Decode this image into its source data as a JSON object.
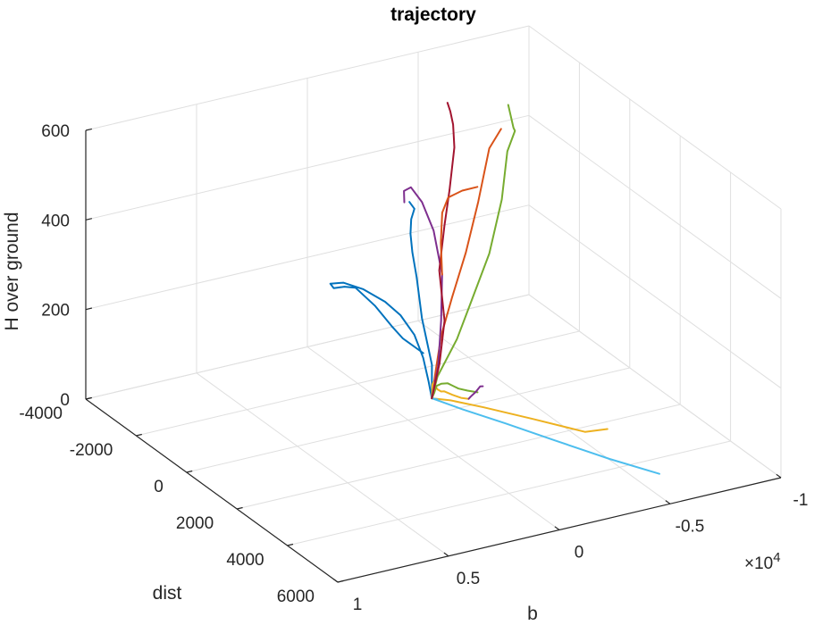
{
  "chart_data": {
    "type": "line",
    "title": "trajectory",
    "xlabel": "b",
    "ylabel": "dist",
    "zlabel": "H over ground",
    "x_exponent_label": "×10",
    "x_exponent_power": "4",
    "x_ticks": [
      "-1",
      "-0.5",
      "0",
      "0.5",
      "1"
    ],
    "y_ticks": [
      "-4000",
      "-2000",
      "0",
      "2000",
      "4000",
      "6000"
    ],
    "z_ticks": [
      "0",
      "200",
      "400",
      "600"
    ],
    "xlim": [
      -10000,
      10000
    ],
    "ylim": [
      -4000,
      6000
    ],
    "zlim": [
      0,
      600
    ],
    "grid": true,
    "view": "3d",
    "colors": {
      "axis": "#262626",
      "grid": "#dfdfdf",
      "series": [
        "#0072bd",
        "#d95319",
        "#edb120",
        "#7e2f8e",
        "#77ac30",
        "#4dbeee",
        "#a2142f"
      ]
    },
    "series": [
      {
        "color": "#0072bd",
        "points": [
          [
            -570,
            440,
            60
          ],
          [
            -1300,
            -200,
            100
          ],
          [
            -2100,
            -1300,
            150
          ],
          [
            -3000,
            -2300,
            190
          ],
          [
            -3600,
            -3000,
            210
          ],
          [
            -4200,
            -3600,
            220
          ],
          [
            -4800,
            -4100,
            225
          ],
          [
            -5400,
            -4500,
            225
          ],
          [
            -5400,
            -4700,
            232
          ]
        ]
      },
      {
        "color": "#0072bd",
        "points": [
          [
            -570,
            440,
            60
          ],
          [
            -550,
            330,
            93
          ],
          [
            -450,
            200,
            142
          ],
          [
            -260,
            20,
            188
          ],
          [
            130,
            -190,
            228
          ],
          [
            700,
            -300,
            260
          ],
          [
            1700,
            -300,
            300
          ],
          [
            2700,
            -200,
            330
          ],
          [
            3400,
            -100,
            340
          ],
          [
            3700,
            300,
            350
          ],
          [
            3900,
            900,
            380
          ],
          [
            4200,
            1600,
            410
          ],
          [
            4800,
            2900,
            430
          ],
          [
            5400,
            4100,
            440
          ],
          [
            5700,
            4800,
            445
          ],
          [
            5800,
            5700,
            450
          ]
        ]
      },
      {
        "color": "#d95319",
        "points": [
          [
            -570,
            440,
            60
          ],
          [
            -880,
            310,
            110
          ],
          [
            -1310,
            160,
            180
          ],
          [
            -1990,
            -10,
            250
          ],
          [
            -2900,
            -260,
            330
          ],
          [
            -3800,
            -560,
            420
          ],
          [
            -4800,
            -1000,
            510
          ],
          [
            -5900,
            -1500,
            520
          ]
        ]
      },
      {
        "color": "#edb120",
        "points": [
          [
            -570,
            440,
            60
          ],
          [
            -1000,
            800,
            65
          ],
          [
            -1700,
            1500,
            70
          ],
          [
            -2800,
            2500,
            72
          ],
          [
            -4000,
            3500,
            70
          ],
          [
            -4900,
            3600,
            70
          ]
        ]
      },
      {
        "color": "#edb120",
        "points": [
          [
            -570,
            440,
            60
          ],
          [
            -480,
            530,
            80
          ],
          [
            -300,
            700,
            105
          ],
          [
            0,
            1000,
            125
          ],
          [
            500,
            1600,
            140
          ],
          [
            900,
            2100,
            160
          ],
          [
            1100,
            2400,
            175
          ],
          [
            1200,
            2800,
            185
          ],
          [
            1250,
            3200,
            195
          ],
          [
            1250,
            3500,
            205
          ]
        ]
      },
      {
        "color": "#4dbeee",
        "points": [
          [
            -570,
            440,
            60
          ],
          [
            -1200,
            1100,
            55
          ],
          [
            -2100,
            2000,
            50
          ],
          [
            -3100,
            3100,
            45
          ],
          [
            -4200,
            4300,
            40
          ],
          [
            -5200,
            5400,
            40
          ]
        ]
      },
      {
        "color": "#4dbeee",
        "points": [
          [
            -570,
            440,
            60
          ],
          [
            -660,
            580,
            62
          ]
        ]
      },
      {
        "color": "#77ac30",
        "points": [
          [
            -570,
            440,
            60
          ],
          [
            -950,
            330,
            100
          ],
          [
            -2100,
            90,
            160
          ],
          [
            -3300,
            -400,
            210
          ],
          [
            -4800,
            -1000,
            275
          ],
          [
            -6500,
            -2000,
            335
          ],
          [
            -8000,
            -3100,
            380
          ],
          [
            -8800,
            -3500,
            400
          ],
          [
            -8900,
            -3650,
            400
          ],
          [
            -8950,
            -3900,
            440
          ]
        ]
      },
      {
        "color": "#77ac30",
        "points": [
          [
            -570,
            440,
            60
          ],
          [
            -500,
            600,
            80
          ],
          [
            -250,
            900,
            110
          ],
          [
            200,
            1500,
            145
          ],
          [
            600,
            2100,
            175
          ],
          [
            800,
            2700,
            190
          ],
          [
            900,
            3150,
            205
          ],
          [
            850,
            3500,
            215
          ]
        ]
      },
      {
        "color": "#7e2f8e",
        "points": [
          [
            -570,
            440,
            60
          ],
          [
            -1150,
            180,
            115
          ],
          [
            -1600,
            -100,
            200
          ],
          [
            -2100,
            -500,
            280
          ],
          [
            -2400,
            -1100,
            350
          ],
          [
            -2500,
            -1650,
            390
          ],
          [
            -2400,
            -2000,
            410
          ],
          [
            -2200,
            -2100,
            400
          ],
          [
            -2100,
            -2000,
            380
          ]
        ]
      },
      {
        "color": "#7e2f8e",
        "points": [
          [
            1250,
            3500,
            205
          ],
          [
            1180,
            3520,
            210
          ],
          [
            1000,
            3560,
            220
          ],
          [
            800,
            3560,
            230
          ],
          [
            700,
            3580,
            230
          ]
        ]
      },
      {
        "color": "#a2142f",
        "points": [
          [
            -570,
            440,
            60
          ],
          [
            -1200,
            190,
            120
          ],
          [
            -1700,
            -50,
            200
          ],
          [
            -2200,
            -700,
            280
          ],
          [
            -3000,
            -1200,
            350
          ],
          [
            -3800,
            -1700,
            400
          ],
          [
            -4700,
            -2300,
            460
          ],
          [
            -5100,
            -2700,
            490
          ],
          [
            -5200,
            -2900,
            510
          ],
          [
            -5300,
            -3100,
            520
          ]
        ]
      },
      {
        "color": "#d95319",
        "points": [
          [
            -2100,
            -500,
            280
          ],
          [
            -2500,
            -900,
            330
          ],
          [
            -2900,
            -1200,
            380
          ],
          [
            -3400,
            -1400,
            400
          ],
          [
            -4200,
            -1550,
            400
          ],
          [
            -5000,
            -1650,
            395
          ]
        ]
      }
    ]
  }
}
